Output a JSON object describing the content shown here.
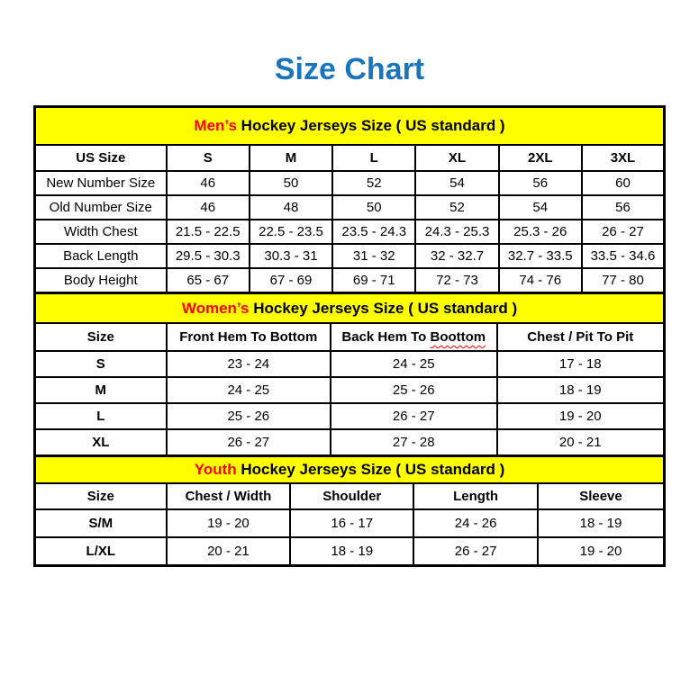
{
  "title": {
    "text": "Size Chart"
  },
  "colors": {
    "title_blue": "#1b75bc",
    "band_yellow": "#ffff00",
    "accent_red": "#ff0000",
    "border_black": "#000000"
  },
  "chart_data": [
    {
      "type": "table",
      "title": "Men’s Hockey Jerseys Size ( US standard )",
      "title_accent": "Men’s",
      "columns": [
        "US Size",
        "S",
        "M",
        "L",
        "XL",
        "2XL",
        "3XL"
      ],
      "rows": [
        [
          "New Number Size",
          "46",
          "50",
          "52",
          "54",
          "56",
          "60"
        ],
        [
          "Old Number Size",
          "46",
          "48",
          "50",
          "52",
          "54",
          "56"
        ],
        [
          "Width Chest",
          "21.5 - 22.5",
          "22.5 - 23.5",
          "23.5 - 24.3",
          "24.3 - 25.3",
          "25.3 - 26",
          "26 - 27"
        ],
        [
          "Back Length",
          "29.5 - 30.3",
          "30.3 - 31",
          "31 - 32",
          "32 - 32.7",
          "32.7 - 33.5",
          "33.5 - 34.6"
        ],
        [
          "Body Height",
          "65 - 67",
          "67 - 69",
          "69 - 71",
          "72 - 73",
          "74 - 76",
          "77 - 80"
        ]
      ]
    },
    {
      "type": "table",
      "title": "Women’s Hockey Jerseys Size ( US standard )",
      "title_accent": "Women’s",
      "columns": [
        "Size",
        "Front Hem To Bottom",
        "Back Hem To Boottom",
        "Chest / Pit To Pit"
      ],
      "spellcheck_underline": {
        "column_index": 2,
        "word": "Boottom"
      },
      "rows": [
        [
          "S",
          "23 - 24",
          "24 - 25",
          "17 - 18"
        ],
        [
          "M",
          "24 - 25",
          "25 - 26",
          "18 - 19"
        ],
        [
          "L",
          "25 - 26",
          "26 - 27",
          "19 - 20"
        ],
        [
          "XL",
          "26 - 27",
          "27 - 28",
          "20 - 21"
        ]
      ]
    },
    {
      "type": "table",
      "title": "Youth Hockey Jerseys Size ( US standard )",
      "title_accent": "Youth",
      "columns": [
        "Size",
        "Chest / Width",
        "Shoulder",
        "Length",
        "Sleeve"
      ],
      "rows": [
        [
          "S/M",
          "19 - 20",
          "16 - 17",
          "24 - 26",
          "18 - 19"
        ],
        [
          "L/XL",
          "20 - 21",
          "18 - 19",
          "26 - 27",
          "19 - 20"
        ]
      ]
    }
  ]
}
